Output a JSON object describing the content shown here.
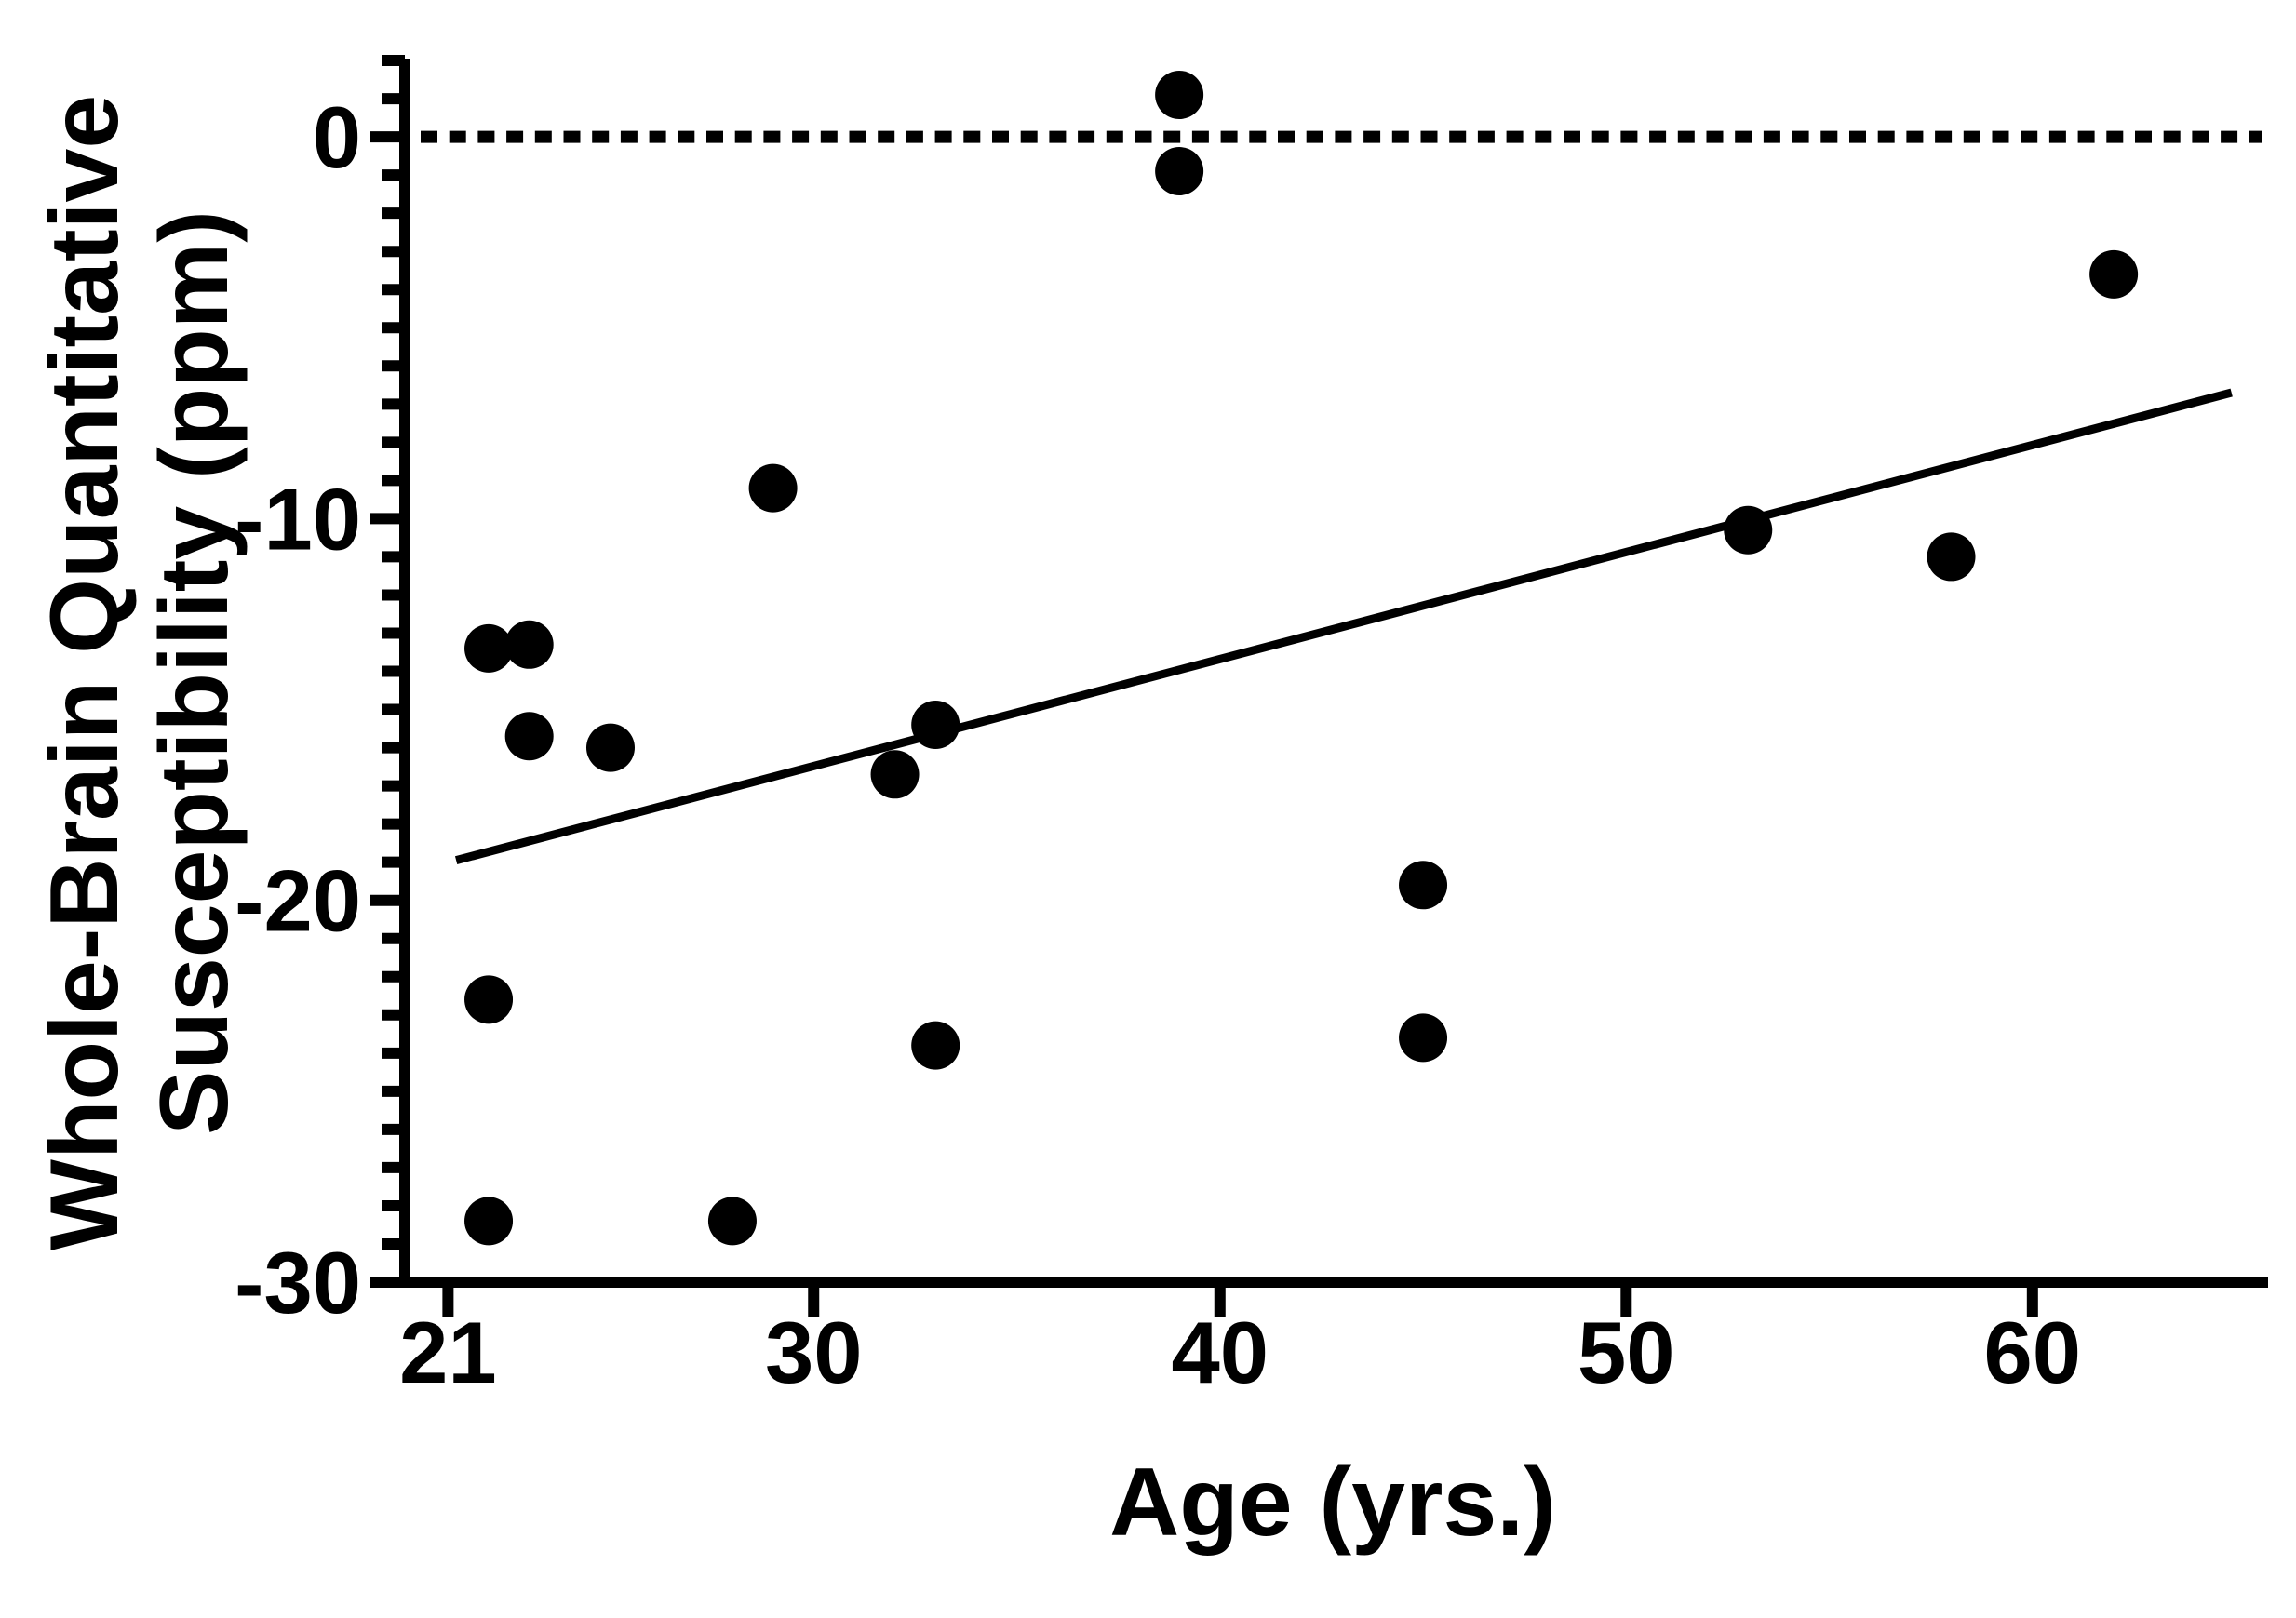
{
  "figure": {
    "background_color": "#ffffff",
    "ink_color": "#000000"
  },
  "chart_data": {
    "type": "scatter",
    "title": "",
    "xlabel": "Age (yrs.)",
    "ylabel_lines": [
      "Whole-Brain Quantitative",
      "Susceptibility (ppm)"
    ],
    "x_axis": {
      "tick_labels": [
        21,
        30,
        40,
        50,
        60
      ],
      "range": [
        19.8,
        65.8
      ],
      "minor_ticks": false
    },
    "y_axis": {
      "tick_labels": [
        0,
        -10,
        -20,
        -30
      ],
      "range": [
        -30,
        2.05
      ],
      "minor_tick_step": 1
    },
    "points": [
      {
        "age": 39,
        "qsm": 1.1
      },
      {
        "age": 39,
        "qsm": -0.9
      },
      {
        "age": 62,
        "qsm": -3.6
      },
      {
        "age": 29,
        "qsm": -9.2
      },
      {
        "age": 53,
        "qsm": -10.3
      },
      {
        "age": 58,
        "qsm": -11.0
      },
      {
        "age": 22,
        "qsm": -13.4
      },
      {
        "age": 23,
        "qsm": -13.3
      },
      {
        "age": 23,
        "qsm": -15.7
      },
      {
        "age": 25,
        "qsm": -16.0
      },
      {
        "age": 33,
        "qsm": -15.4
      },
      {
        "age": 32,
        "qsm": -16.7
      },
      {
        "age": 45,
        "qsm": -19.6
      },
      {
        "age": 22,
        "qsm": -22.6
      },
      {
        "age": 33,
        "qsm": -23.8
      },
      {
        "age": 45,
        "qsm": -23.6
      },
      {
        "age": 22,
        "qsm": -28.4
      },
      {
        "age": 28,
        "qsm": -28.4
      }
    ],
    "regression_line": {
      "x1": 21.2,
      "y1": -18.95,
      "x2": 64.9,
      "y2": -6.7
    },
    "reference_line": {
      "y": 0,
      "style": "dotted"
    },
    "legend": null,
    "grid": false
  }
}
